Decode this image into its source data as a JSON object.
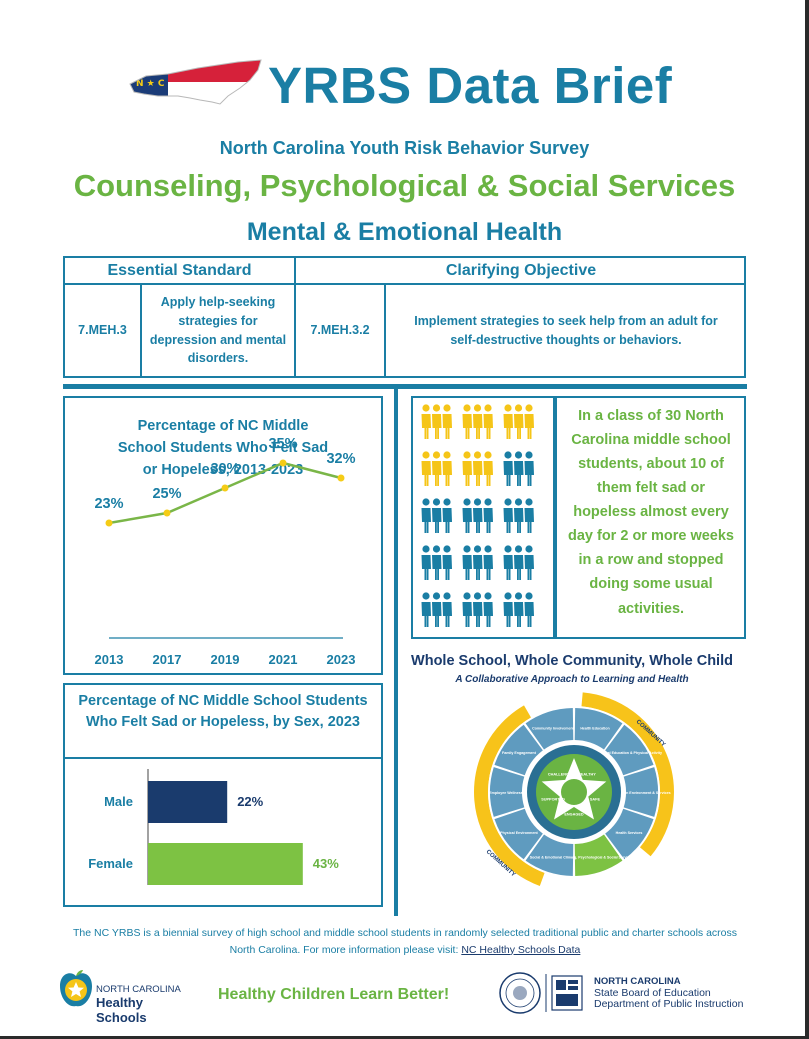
{
  "header": {
    "title": "YRBS Data Brief",
    "subtitle": "North Carolina Youth Risk Behavior Survey",
    "topic": "Counseling, Psychological & Social Services",
    "subtopic": "Mental & Emotional Health"
  },
  "standards": {
    "essential_header": "Essential Standard",
    "clarifying_header": "Clarifying Objective",
    "essential_code": "7.MEH.3",
    "essential_text": "Apply help-seeking strategies for depression and mental disorders.",
    "clarifying_code": "7.MEH.3.2",
    "clarifying_text": "Implement strategies to seek help from an adult for self-destructive thoughts or behaviors."
  },
  "chart_data": [
    {
      "type": "line",
      "title": "Percentage of NC Middle School Students Who Felt Sad or Hopeless, 2013-2023",
      "categories": [
        "2013",
        "2017",
        "2019",
        "2021",
        "2023"
      ],
      "values": [
        23,
        25,
        30,
        35,
        32
      ],
      "labels": [
        "23%",
        "25%",
        "30%",
        "35%",
        "32%"
      ],
      "ylim": [
        0,
        40
      ],
      "grid": false,
      "color": "#7ab648",
      "marker_color": "#f5cc16"
    },
    {
      "type": "bar",
      "title": "Percentage of NC Middle School Students Who Felt Sad or Hopeless, by Sex, 2023",
      "categories": [
        "Male",
        "Female"
      ],
      "values": [
        22,
        43
      ],
      "labels": [
        "22%",
        "43%"
      ],
      "colors": [
        "#1a3b6d",
        "#7dc243"
      ],
      "xlim": [
        0,
        50
      ],
      "orientation": "horizontal"
    }
  ],
  "icon_grid": {
    "icon": "students-trio-icon",
    "rows": 5,
    "cols": 3,
    "highlighted": 5,
    "highlight_color": "#f5c518",
    "base_color": "#1a7ea4"
  },
  "fact_text": "In a class of 30 North Carolina middle school students, about 10 of them felt sad or hopeless almost every day for 2 or more weeks in a row and stopped doing some usual activities.",
  "wscc": {
    "title": "Whole School, Whole Community, Whole Child",
    "subtitle": "A Collaborative Approach to Learning and Health",
    "community_label": "COMMUNITY",
    "center_labels": [
      "HEALTHY",
      "SAFE",
      "ENGAGED",
      "SUPPORTED",
      "CHALLENGED"
    ],
    "sections": [
      "Health Education",
      "Physical Education & Physical Activity",
      "Nutrition Environment & Services",
      "Health Services",
      "Counseling, Psychological & Social Services",
      "Social & Emotional Climate",
      "Physical Environment",
      "Employee Wellness",
      "Family Engagement",
      "Community Involvement"
    ],
    "highlight_color": "#7dc243"
  },
  "footer": {
    "text": "The NC YRBS is a biennial survey of high school and middle school students in randomly selected traditional public and charter schools across North Carolina. For more information please visit:",
    "link": "NC Healthy Schools Data",
    "logo_line1": "NORTH CAROLINA",
    "logo_line2": "Healthy Schools",
    "tagline": "Healthy Children Learn Better!",
    "sboe_line1": "NORTH CAROLINA",
    "sboe_line2": "State Board of Education",
    "sboe_line3": "Department of Public Instruction"
  }
}
